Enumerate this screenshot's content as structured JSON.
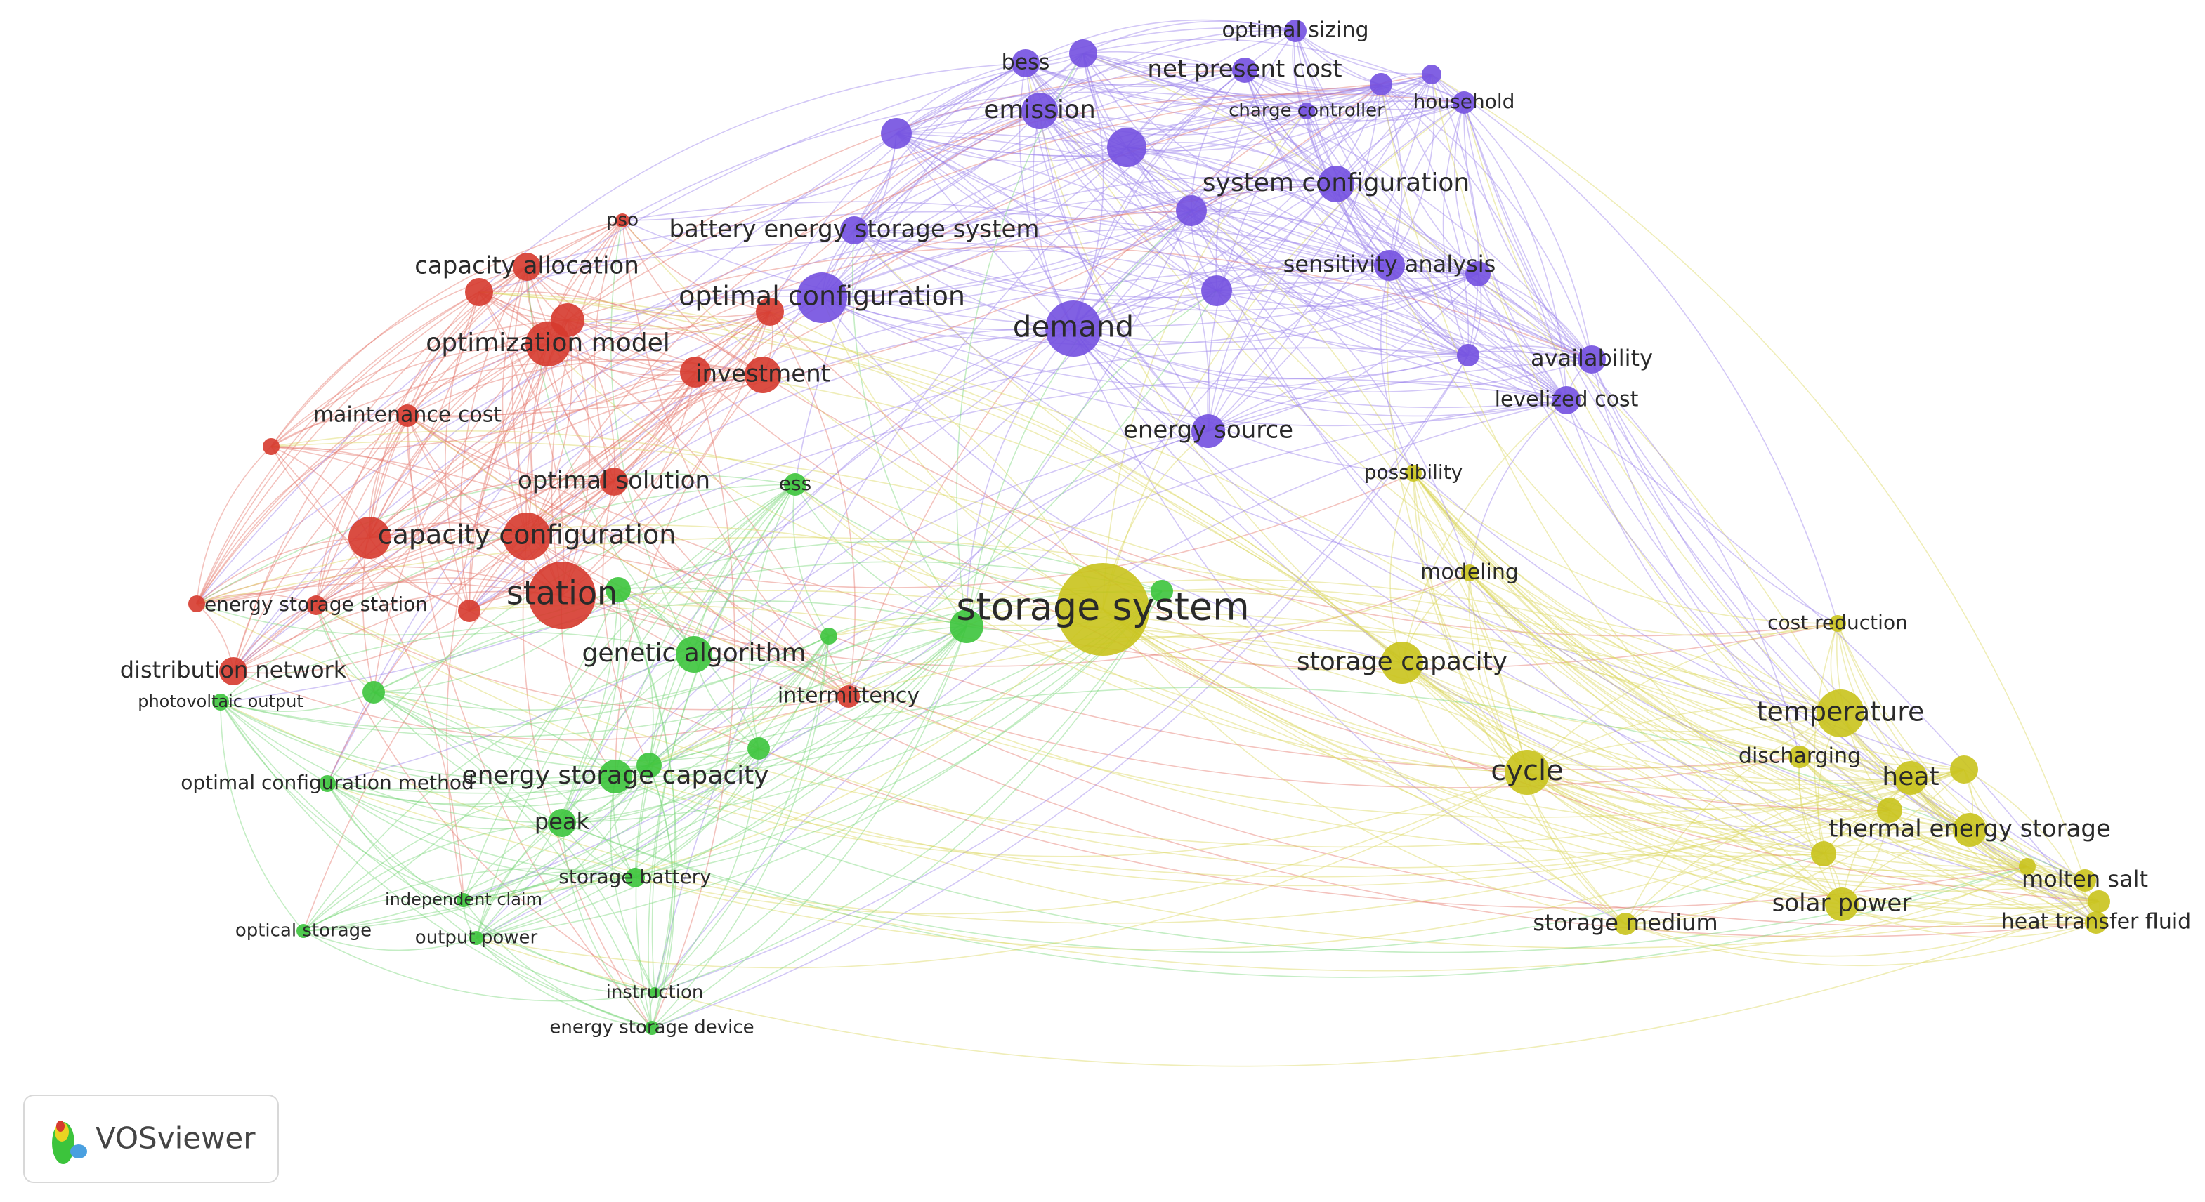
{
  "nodes": [
    {
      "label": "optimal sizing"
    },
    {
      "label": "bess"
    },
    {
      "label": "net present cost"
    },
    {
      "label": "emission"
    },
    {
      "label": "charge controller"
    },
    {
      "label": "household"
    },
    {
      "label": "system configuration"
    },
    {
      "label": "battery energy storage system"
    },
    {
      "label": "sensitivity analysis"
    },
    {
      "label": "optimal configuration"
    },
    {
      "label": "demand"
    },
    {
      "label": "availability"
    },
    {
      "label": "levelized cost"
    },
    {
      "label": "energy source"
    },
    {
      "label": "pso"
    },
    {
      "label": "capacity allocation"
    },
    {
      "label": "optimization model"
    },
    {
      "label": "investment"
    },
    {
      "label": "maintenance cost"
    },
    {
      "label": "optimal solution"
    },
    {
      "label": "capacity configuration"
    },
    {
      "label": "station"
    },
    {
      "label": "energy storage station"
    },
    {
      "label": "distribution network"
    },
    {
      "label": "intermittency"
    },
    {
      "label": "ess"
    },
    {
      "label": "genetic algorithm"
    },
    {
      "label": "photovoltaic output"
    },
    {
      "label": "optimal configuration method"
    },
    {
      "label": "energy storage capacity"
    },
    {
      "label": "peak"
    },
    {
      "label": "storage battery"
    },
    {
      "label": "independent claim"
    },
    {
      "label": "optical storage"
    },
    {
      "label": "output power"
    },
    {
      "label": "instruction"
    },
    {
      "label": "energy storage device"
    },
    {
      "label": "possibility"
    },
    {
      "label": "storage system"
    },
    {
      "label": "modeling"
    },
    {
      "label": "cost reduction"
    },
    {
      "label": "storage capacity"
    },
    {
      "label": "temperature"
    },
    {
      "label": "discharging"
    },
    {
      "label": "cycle"
    },
    {
      "label": "heat"
    },
    {
      "label": "thermal energy storage"
    },
    {
      "label": "molten salt"
    },
    {
      "label": "solar power"
    },
    {
      "label": "storage medium"
    },
    {
      "label": "heat transfer fluid"
    }
  ],
  "logo": {
    "text": "VOSviewer"
  }
}
